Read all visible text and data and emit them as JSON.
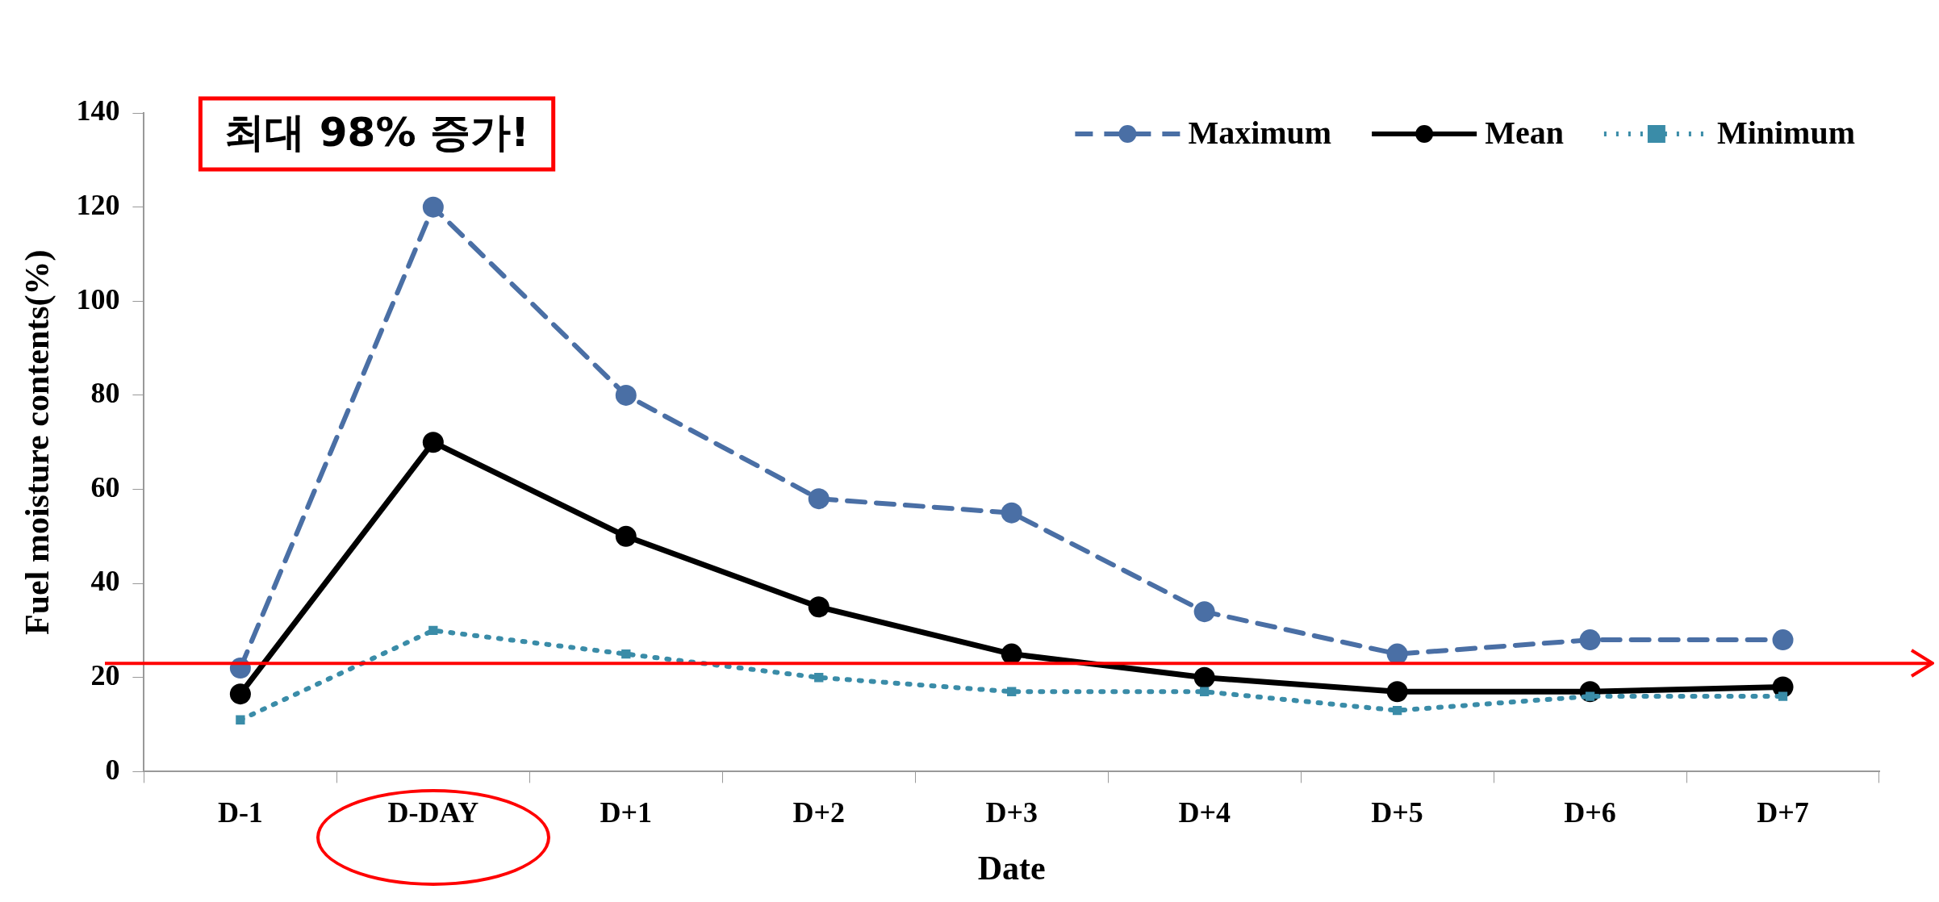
{
  "chart_data": {
    "type": "line",
    "xlabel": "Date",
    "ylabel": "Fuel moisture contents(%)",
    "categories": [
      "D-1",
      "D-DAY",
      "D+1",
      "D+2",
      "D+3",
      "D+4",
      "D+5",
      "D+6",
      "D+7"
    ],
    "series": [
      {
        "name": "Maximum",
        "color": "#4a6fa5",
        "marker": "circle",
        "line_style": "dashed",
        "values": [
          22,
          120,
          80,
          58,
          55,
          34,
          25,
          28,
          28
        ]
      },
      {
        "name": "Mean",
        "color": "#000000",
        "marker": "circle",
        "line_style": "solid",
        "values": [
          16.5,
          70,
          50,
          35,
          25,
          20,
          17,
          17,
          18
        ]
      },
      {
        "name": "Minimum",
        "color": "#3a8ca8",
        "marker": "square",
        "line_style": "dotted",
        "values": [
          11,
          30,
          25,
          20,
          17,
          17,
          13,
          16,
          16
        ]
      }
    ],
    "ylim": [
      0,
      140
    ],
    "yticks": [
      0,
      20,
      40,
      60,
      80,
      100,
      120,
      140
    ],
    "grid": false,
    "legend": "top right",
    "ref_lines": [
      {
        "axis": "y",
        "value": 23,
        "color": "#ff0000"
      }
    ],
    "annotations": [
      "최대 98% 증가!"
    ]
  }
}
